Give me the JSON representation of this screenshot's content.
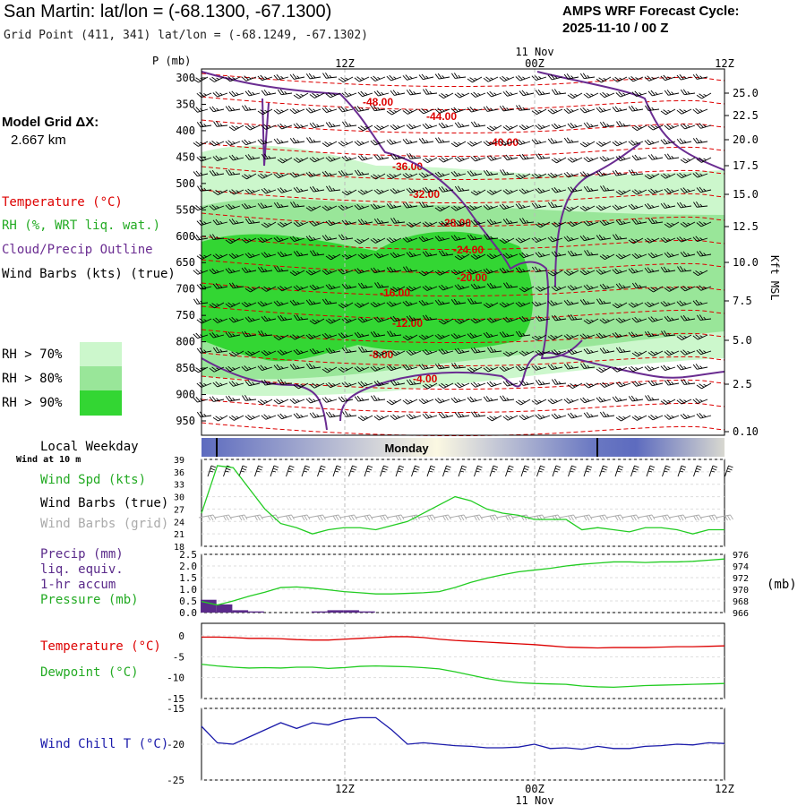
{
  "header": {
    "title": "San Martin:  lat/lon = (-68.1300, -67.1300)",
    "subtitle": "Grid Point (411, 341) lat/lon = (-68.1249, -67.1302)",
    "cycle_line1": "AMPS WRF Forecast Cycle:",
    "cycle_line2": "2025-11-10 / 00  Z"
  },
  "legend": {
    "model_grid_label": "Model Grid ΔX:",
    "model_grid_value": "2.667 km",
    "temperature": "Temperature (°C)",
    "rh": "RH (%, WRT liq. wat.)",
    "cloud": "Cloud/Precip Outline",
    "wind_barbs": "Wind Barbs (kts) (true)",
    "rh70": "RH > 70%",
    "rh80": "RH > 80%",
    "rh90": "RH > 90%",
    "pressure_unit_label": "P (mb)",
    "height_unit_label": "Kft MSL",
    "local_weekday": "Local Weekday",
    "wind_10m": "Wind at 10 m",
    "weekday_name": "Monday",
    "wind_spd": "Wind Spd (kts)",
    "wind_barbs_true": "Wind Barbs (true)",
    "wind_barbs_grid": "Wind Barbs (grid)",
    "precip": "Precip (mm)",
    "liq_equiv": "liq. equiv.",
    "accum": "1-hr accum",
    "pressure": "Pressure (mb)",
    "pressure_mb": "(mb)",
    "temp2": "Temperature (°C)",
    "dewpoint": "Dewpoint (°C)",
    "windchill": "Wind Chill T (°C)"
  },
  "colors": {
    "rh70": "#ccf7cc",
    "rh80": "#99e699",
    "rh90": "#33d633",
    "temperature": "#dd0000",
    "cloud": "#6a2c91",
    "dewpoint": "#22cc22",
    "windchill": "#1a1aaa",
    "precip": "#5a2a8a"
  },
  "chart_data": [
    {
      "type": "heatmap",
      "name": "cross-section",
      "x_ticks": [
        "12Z",
        "00Z",
        "12Z"
      ],
      "x_date": "11 Nov",
      "pressure_levels": [
        300,
        350,
        400,
        450,
        500,
        550,
        600,
        650,
        700,
        750,
        800,
        850,
        900,
        950
      ],
      "height_kft": [
        "25.0",
        "22.5",
        "20.0",
        "17.5",
        "15.0",
        "12.5",
        "10.0",
        "7.5",
        "5.0",
        "2.5",
        "0.10"
      ],
      "temperature_labels": [
        "-48.00",
        "-44.00",
        "-40.00",
        "-36.00",
        "-32.00",
        "-28.00",
        "-24.00",
        "-20.00",
        "-16.00",
        "-12.00",
        "-8.00",
        "-4.00"
      ]
    },
    {
      "type": "line",
      "name": "wind-speed",
      "ylim": [
        18,
        39
      ],
      "y_ticks": [
        18,
        21,
        24,
        27,
        30,
        33,
        36,
        39
      ],
      "x_hours": [
        0,
        1,
        2,
        3,
        4,
        5,
        6,
        7,
        8,
        9,
        10,
        11,
        12,
        13,
        14,
        15,
        16,
        17,
        18,
        19,
        20,
        21,
        22,
        23,
        24,
        25,
        26,
        27,
        28,
        29,
        30,
        31,
        32,
        33
      ],
      "series": [
        {
          "name": "Wind Spd (kts)",
          "values": [
            26,
            37.5,
            37,
            32,
            27,
            23.5,
            22.5,
            21,
            22,
            22.5,
            22.5,
            22,
            23,
            24,
            26,
            28,
            30,
            29,
            27,
            26,
            25.5,
            24.5,
            24.5,
            24.5,
            22,
            22.5,
            22,
            21.5,
            22.5,
            22.5,
            22,
            21,
            22,
            22
          ]
        }
      ]
    },
    {
      "type": "line",
      "name": "precip-pressure",
      "ylim": [
        0.0,
        2.5
      ],
      "y_ticks": [
        "0.0",
        "0.5",
        "1.0",
        "1.5",
        "2.0",
        "2.5"
      ],
      "y2_ticks": [
        966,
        968,
        970,
        972,
        974,
        976
      ],
      "precip_bars": [
        0.55,
        0.35,
        0.1,
        0.05,
        0.0,
        0.0,
        0.0,
        0.05,
        0.1,
        0.1,
        0.05,
        0.0
      ],
      "pressure_values": [
        967.9,
        967.3,
        968.0,
        968.8,
        969.5,
        970.3,
        970.4,
        970.2,
        969.9,
        969.6,
        969.4,
        969.2,
        969.2,
        969.3,
        969.4,
        969.6,
        970.3,
        971.2,
        971.9,
        972.5,
        973.0,
        973.3,
        973.6,
        974.0,
        974.3,
        974.5,
        974.7,
        974.7,
        974.6,
        974.7,
        974.7,
        974.8,
        975.0,
        975.2
      ]
    },
    {
      "type": "line",
      "name": "temperature-dewpoint",
      "ylim": [
        -15,
        3
      ],
      "y_ticks": [
        0,
        -5,
        -10,
        -15
      ],
      "series": [
        {
          "name": "Temperature (°C)",
          "values": [
            -0.3,
            -0.3,
            -0.4,
            -0.6,
            -0.6,
            -0.7,
            -0.9,
            -1.0,
            -1.0,
            -0.8,
            -0.6,
            -0.4,
            -0.2,
            -0.2,
            -0.4,
            -0.8,
            -1.1,
            -1.3,
            -1.5,
            -1.7,
            -1.9,
            -2.1,
            -2.4,
            -2.7,
            -2.8,
            -2.9,
            -2.8,
            -2.8,
            -2.8,
            -2.7,
            -2.6,
            -2.6,
            -2.5,
            -2.4
          ]
        },
        {
          "name": "Dewpoint (°C)",
          "values": [
            -6.8,
            -7.2,
            -7.5,
            -7.7,
            -7.6,
            -7.7,
            -7.5,
            -7.5,
            -7.8,
            -7.6,
            -7.3,
            -7.2,
            -7.3,
            -7.4,
            -7.6,
            -7.9,
            -8.6,
            -9.4,
            -10.2,
            -10.8,
            -11.2,
            -11.4,
            -11.5,
            -11.6,
            -12.0,
            -12.2,
            -12.3,
            -12.1,
            -11.9,
            -11.8,
            -11.7,
            -11.6,
            -11.5,
            -11.4
          ]
        }
      ]
    },
    {
      "type": "line",
      "name": "wind-chill",
      "ylim": [
        -25,
        -15
      ],
      "y_ticks": [
        -15,
        -20,
        -25
      ],
      "series": [
        {
          "name": "Wind Chill T (°C)",
          "values": [
            -17.5,
            -19.8,
            -20.0,
            -19.0,
            -18.0,
            -17.0,
            -17.8,
            -17.0,
            -17.3,
            -16.6,
            -16.3,
            -16.3,
            -18.0,
            -20.0,
            -19.8,
            -20.0,
            -20.2,
            -20.3,
            -20.5,
            -20.5,
            -20.4,
            -20.0,
            -20.6,
            -20.5,
            -20.7,
            -20.3,
            -20.6,
            -20.6,
            -20.3,
            -20.2,
            -20.0,
            -20.1,
            -19.8,
            -19.9
          ]
        }
      ]
    }
  ]
}
